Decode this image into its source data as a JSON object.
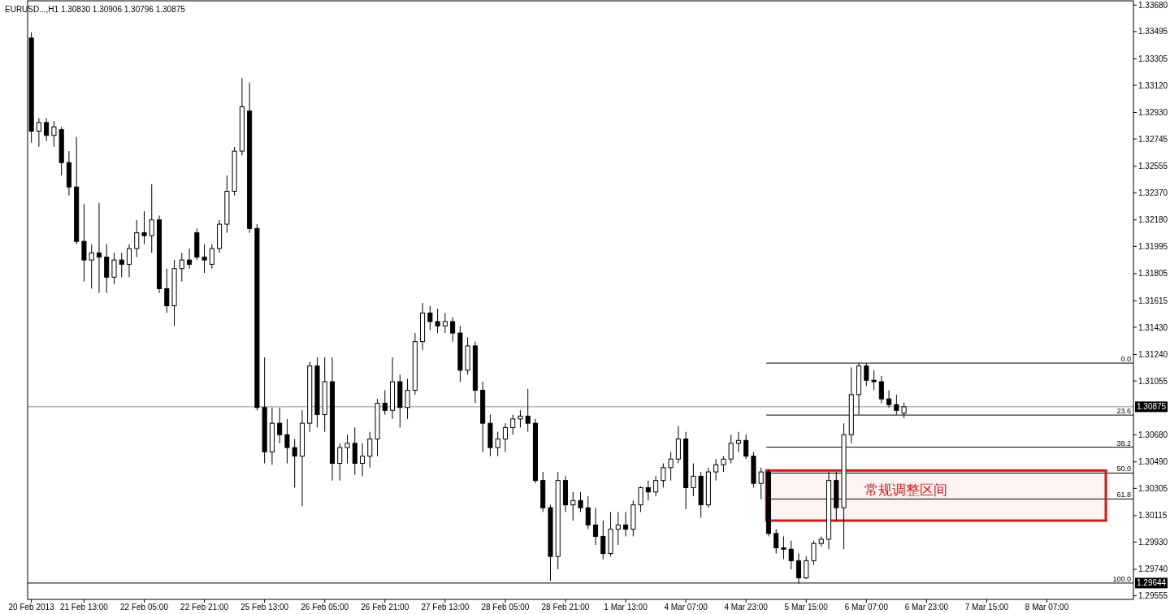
{
  "chart_data": {
    "type": "candlestick",
    "title": "EURUSD...,H1  1.30830 1.30906 1.30796 1.30875",
    "categories": [
      "20 Feb 2013",
      null,
      null,
      null,
      null,
      null,
      null,
      "21 Feb 13:00",
      null,
      null,
      null,
      null,
      null,
      null,
      null,
      "22 Feb 05:00",
      null,
      null,
      null,
      null,
      null,
      null,
      null,
      "22 Feb 21:00",
      null,
      null,
      null,
      null,
      null,
      null,
      null,
      "25 Feb 13:00",
      null,
      null,
      null,
      null,
      null,
      null,
      null,
      "26 Feb 05:00",
      null,
      null,
      null,
      null,
      null,
      null,
      null,
      "26 Feb 21:00",
      null,
      null,
      null,
      null,
      null,
      null,
      null,
      "27 Feb 13:00",
      null,
      null,
      null,
      null,
      null,
      null,
      null,
      "28 Feb 05:00",
      null,
      null,
      null,
      null,
      null,
      null,
      null,
      "28 Feb 21:00",
      null,
      null,
      null,
      null,
      null,
      null,
      null,
      "1 Mar 13:00",
      null,
      null,
      null,
      null,
      null,
      null,
      null,
      "4 Mar 07:00",
      null,
      null,
      null,
      null,
      null,
      null,
      null,
      "4 Mar 23:00",
      null,
      null,
      null,
      null,
      null,
      null,
      null,
      "5 Mar 15:00",
      null,
      null,
      null,
      null,
      null,
      null,
      null,
      "6 Mar 07:00",
      null,
      null,
      null,
      null,
      null,
      null,
      null,
      "6 Mar 23:00",
      null,
      null,
      null,
      null,
      null,
      null,
      null,
      "7 Mar 15:00",
      null,
      null,
      null,
      null,
      null,
      null,
      null,
      "8 Mar 07:00",
      null,
      null,
      null,
      null,
      null,
      null,
      null,
      null,
      null,
      null,
      null
    ],
    "ohlc": [
      [
        1.3345,
        1.3349,
        1.3272,
        1.328
      ],
      [
        1.328,
        1.3289,
        1.3269,
        1.3286
      ],
      [
        1.3286,
        1.3289,
        1.3273,
        1.3277
      ],
      [
        1.3277,
        1.3287,
        1.3269,
        1.3283
      ],
      [
        1.3281,
        1.3283,
        1.3249,
        1.3258
      ],
      [
        1.3258,
        1.3266,
        1.3235,
        1.3241
      ],
      [
        1.3241,
        1.3276,
        1.3201,
        1.3203
      ],
      [
        1.3203,
        1.3229,
        1.3175,
        1.319
      ],
      [
        1.319,
        1.3201,
        1.317,
        1.3195
      ],
      [
        1.3195,
        1.323,
        1.3167,
        1.3192
      ],
      [
        1.3192,
        1.3201,
        1.3167,
        1.3178
      ],
      [
        1.3178,
        1.3195,
        1.3173,
        1.319
      ],
      [
        1.319,
        1.3195,
        1.3178,
        1.3187
      ],
      [
        1.3187,
        1.3201,
        1.3178,
        1.3198
      ],
      [
        1.3198,
        1.3218,
        1.3192,
        1.3209
      ],
      [
        1.3209,
        1.3224,
        1.3201,
        1.3207
      ],
      [
        1.3207,
        1.3243,
        1.3195,
        1.3218
      ],
      [
        1.3218,
        1.3221,
        1.3167,
        1.317
      ],
      [
        1.317,
        1.3184,
        1.3153,
        1.3158
      ],
      [
        1.3158,
        1.319,
        1.3144,
        1.3184
      ],
      [
        1.3184,
        1.3195,
        1.3175,
        1.319
      ],
      [
        1.319,
        1.3198,
        1.3184,
        1.3187
      ],
      [
        1.3209,
        1.3212,
        1.319,
        1.3192
      ],
      [
        1.3192,
        1.3201,
        1.3181,
        1.319
      ],
      [
        1.3187,
        1.3201,
        1.3184,
        1.3198
      ],
      [
        1.3198,
        1.3218,
        1.3195,
        1.3215
      ],
      [
        1.3215,
        1.3249,
        1.3209,
        1.3238
      ],
      [
        1.3238,
        1.3269,
        1.3235,
        1.3266
      ],
      [
        1.3266,
        1.3317,
        1.3263,
        1.3297
      ],
      [
        1.3294,
        1.3314,
        1.3209,
        1.3212
      ],
      [
        1.3212,
        1.3215,
        1.3085,
        1.3087
      ],
      [
        1.3087,
        1.3122,
        1.3048,
        1.3056
      ],
      [
        1.3056,
        1.3087,
        1.3047,
        1.3076
      ],
      [
        1.3076,
        1.3087,
        1.3062,
        1.3068
      ],
      [
        1.3068,
        1.3079,
        1.3048,
        1.3059
      ],
      [
        1.3059,
        1.3065,
        1.3031,
        1.3053
      ],
      [
        1.3053,
        1.3085,
        1.3018,
        1.3076
      ],
      [
        1.3076,
        1.3119,
        1.307,
        1.3116
      ],
      [
        1.3116,
        1.3122,
        1.3073,
        1.3082
      ],
      [
        1.3082,
        1.3122,
        1.307,
        1.3105
      ],
      [
        1.3105,
        1.3122,
        1.3036,
        1.3048
      ],
      [
        1.3048,
        1.3062,
        1.3036,
        1.3059
      ],
      [
        1.3059,
        1.3068,
        1.3048,
        1.3062
      ],
      [
        1.3062,
        1.3073,
        1.304,
        1.3048
      ],
      [
        1.3048,
        1.3062,
        1.3039,
        1.3053
      ],
      [
        1.3053,
        1.307,
        1.3045,
        1.3065
      ],
      [
        1.3065,
        1.3093,
        1.3053,
        1.309
      ],
      [
        1.309,
        1.3099,
        1.3082,
        1.3085
      ],
      [
        1.3085,
        1.3122,
        1.3079,
        1.3105
      ],
      [
        1.3105,
        1.311,
        1.3073,
        1.3087
      ],
      [
        1.3087,
        1.3107,
        1.3079,
        1.3099
      ],
      [
        1.3099,
        1.3139,
        1.3096,
        1.3133
      ],
      [
        1.3133,
        1.316,
        1.3127,
        1.3153
      ],
      [
        1.3153,
        1.3158,
        1.3141,
        1.3147
      ],
      [
        1.3147,
        1.3156,
        1.3139,
        1.3144
      ],
      [
        1.3144,
        1.3153,
        1.3139,
        1.3147
      ],
      [
        1.3147,
        1.315,
        1.3133,
        1.3139
      ],
      [
        1.3139,
        1.3144,
        1.3105,
        1.3113
      ],
      [
        1.3113,
        1.3136,
        1.311,
        1.313
      ],
      [
        1.313,
        1.3133,
        1.309,
        1.3099
      ],
      [
        1.3099,
        1.3105,
        1.3056,
        1.3076
      ],
      [
        1.3076,
        1.3082,
        1.3053,
        1.3059
      ],
      [
        1.3059,
        1.307,
        1.3053,
        1.3065
      ],
      [
        1.3065,
        1.3076,
        1.3056,
        1.3073
      ],
      [
        1.3073,
        1.3082,
        1.3068,
        1.3079
      ],
      [
        1.3079,
        1.3085,
        1.3073,
        1.3081
      ],
      [
        1.3081,
        1.31,
        1.307,
        1.3076
      ],
      [
        1.3076,
        1.3079,
        1.3034,
        1.3036
      ],
      [
        1.3036,
        1.3042,
        1.3014,
        1.3017
      ],
      [
        1.3017,
        1.3019,
        1.2966,
        1.2983
      ],
      [
        1.2983,
        1.3042,
        1.2974,
        1.3036
      ],
      [
        1.3036,
        1.3039,
        1.3014,
        1.3019
      ],
      [
        1.3019,
        1.3028,
        1.3008,
        1.3022
      ],
      [
        1.3022,
        1.3028,
        1.3014,
        1.3017
      ],
      [
        1.3017,
        1.3025,
        1.3002,
        1.3005
      ],
      [
        1.3005,
        1.3017,
        1.2991,
        1.2997
      ],
      [
        1.2997,
        1.3008,
        1.2981,
        1.2985
      ],
      [
        1.2985,
        1.3014,
        1.2983,
        1.3002
      ],
      [
        1.3002,
        1.3014,
        1.2991,
        1.3005
      ],
      [
        1.3005,
        1.3014,
        1.2997,
        1.3002
      ],
      [
        1.3002,
        1.3022,
        1.2997,
        1.3019
      ],
      [
        1.3019,
        1.3032,
        1.3014,
        1.3031
      ],
      [
        1.3031,
        1.3036,
        1.3022,
        1.3028
      ],
      [
        1.3028,
        1.3039,
        1.3025,
        1.3036
      ],
      [
        1.3036,
        1.3048,
        1.3031,
        1.3045
      ],
      [
        1.3045,
        1.3056,
        1.3036,
        1.3051
      ],
      [
        1.3051,
        1.3074,
        1.3048,
        1.3065
      ],
      [
        1.3065,
        1.307,
        1.3016,
        1.3031
      ],
      [
        1.3031,
        1.3048,
        1.3025,
        1.3039
      ],
      [
        1.3039,
        1.3042,
        1.301,
        1.3019
      ],
      [
        1.3019,
        1.3045,
        1.3017,
        1.3042
      ],
      [
        1.3042,
        1.3051,
        1.3036,
        1.3047
      ],
      [
        1.3047,
        1.3053,
        1.3042,
        1.3051
      ],
      [
        1.3051,
        1.3068,
        1.3048,
        1.3062
      ],
      [
        1.3062,
        1.307,
        1.3056,
        1.3064
      ],
      [
        1.3064,
        1.3068,
        1.3051,
        1.3053
      ],
      [
        1.3053,
        1.3056,
        1.3031,
        1.3034
      ],
      [
        1.3034,
        1.3045,
        1.3023,
        1.3042
      ],
      [
        1.3042,
        1.3044,
        1.2997,
        1.2999
      ],
      [
        1.2999,
        1.3002,
        1.2985,
        1.2989
      ],
      [
        1.2989,
        1.2997,
        1.2981,
        1.2988
      ],
      [
        1.2988,
        1.2994,
        1.2974,
        1.298
      ],
      [
        1.298,
        1.2985,
        1.2964,
        1.2968
      ],
      [
        1.2968,
        1.2983,
        1.2967,
        1.298
      ],
      [
        1.298,
        1.2994,
        1.2977,
        1.2992
      ],
      [
        1.2992,
        1.2997,
        1.299,
        1.2995
      ],
      [
        1.2995,
        1.3042,
        1.2988,
        1.3036
      ],
      [
        1.3036,
        1.3042,
        1.3008,
        1.3017
      ],
      [
        1.3017,
        1.3076,
        1.2988,
        1.3068
      ],
      [
        1.3068,
        1.3115,
        1.3062,
        1.3096
      ],
      [
        1.3096,
        1.3118,
        1.3082,
        1.3116
      ],
      [
        1.3116,
        1.3118,
        1.3102,
        1.3106
      ],
      [
        1.3106,
        1.3113,
        1.3099,
        1.3105
      ],
      [
        1.3105,
        1.3109,
        1.309,
        1.3093
      ],
      [
        1.3093,
        1.3099,
        1.3087,
        1.3089
      ],
      [
        1.3089,
        1.3096,
        1.3082,
        1.3085
      ],
      [
        1.3083,
        1.30906,
        1.30796,
        1.30875
      ],
      null,
      null,
      null,
      null,
      null,
      null,
      null,
      null,
      null,
      null,
      null,
      null,
      null,
      null,
      null,
      null,
      null,
      null,
      null,
      null,
      null,
      null,
      null,
      null,
      null,
      null,
      null,
      null,
      null,
      null
    ],
    "ylim": [
      1.2953,
      1.3371
    ],
    "yticks": [
      {
        "value": 1.3368,
        "label": "1.33680"
      },
      {
        "value": 1.33495,
        "label": "1.33495"
      },
      {
        "value": 1.33305,
        "label": "1.33305"
      },
      {
        "value": 1.3312,
        "label": "1.33120"
      },
      {
        "value": 1.3293,
        "label": "1.32930"
      },
      {
        "value": 1.32745,
        "label": "1.32745"
      },
      {
        "value": 1.32555,
        "label": "1.32555"
      },
      {
        "value": 1.3237,
        "label": "1.32370"
      },
      {
        "value": 1.3218,
        "label": "1.32180"
      },
      {
        "value": 1.31995,
        "label": "1.31995"
      },
      {
        "value": 1.31805,
        "label": "1.31805"
      },
      {
        "value": 1.31615,
        "label": "1.31615"
      },
      {
        "value": 1.3143,
        "label": "1.31430"
      },
      {
        "value": 1.3124,
        "label": "1.31240"
      },
      {
        "value": 1.31055,
        "label": "1.31055"
      },
      {
        "value": 1.3068,
        "label": "1.30680"
      },
      {
        "value": 1.3049,
        "label": "1.30490"
      },
      {
        "value": 1.30305,
        "label": "1.30305"
      },
      {
        "value": 1.30115,
        "label": "1.30115"
      },
      {
        "value": 1.2993,
        "label": "1.29930"
      },
      {
        "value": 1.2974,
        "label": "1.29740"
      },
      {
        "value": 1.29555,
        "label": "1.29555"
      }
    ],
    "ref_lines": [
      {
        "axis": "y",
        "value": 1.30875,
        "label": "1.30875",
        "color": "#8c9aa5"
      },
      {
        "axis": "y",
        "value": 1.29644,
        "label": "1.29644",
        "color": "#000000"
      },
      {
        "axis": "y",
        "value": 1.3118,
        "color": "#000000"
      },
      {
        "axis": "y",
        "value": 1.30817,
        "color": "#000000"
      },
      {
        "axis": "y",
        "value": 1.30593,
        "color": "#000000"
      },
      {
        "axis": "y",
        "value": 1.30412,
        "color": "#000000"
      },
      {
        "axis": "y",
        "value": 1.30231,
        "color": "#000000"
      }
    ],
    "bands": [
      {
        "axis": "y",
        "from": 1.3008,
        "to": 1.3043,
        "label": "常规调整区间",
        "color": "#d11a1a"
      }
    ],
    "annotations": [
      {
        "text": "0.0",
        "y": 1.3118
      },
      {
        "text": "23.6",
        "y": 1.30817
      },
      {
        "text": "38.2",
        "y": 1.30593
      },
      {
        "text": "50.0",
        "y": 1.30412
      },
      {
        "text": "61.8",
        "y": 1.30231
      },
      {
        "text": "100.0",
        "y": 1.29644
      }
    ]
  }
}
